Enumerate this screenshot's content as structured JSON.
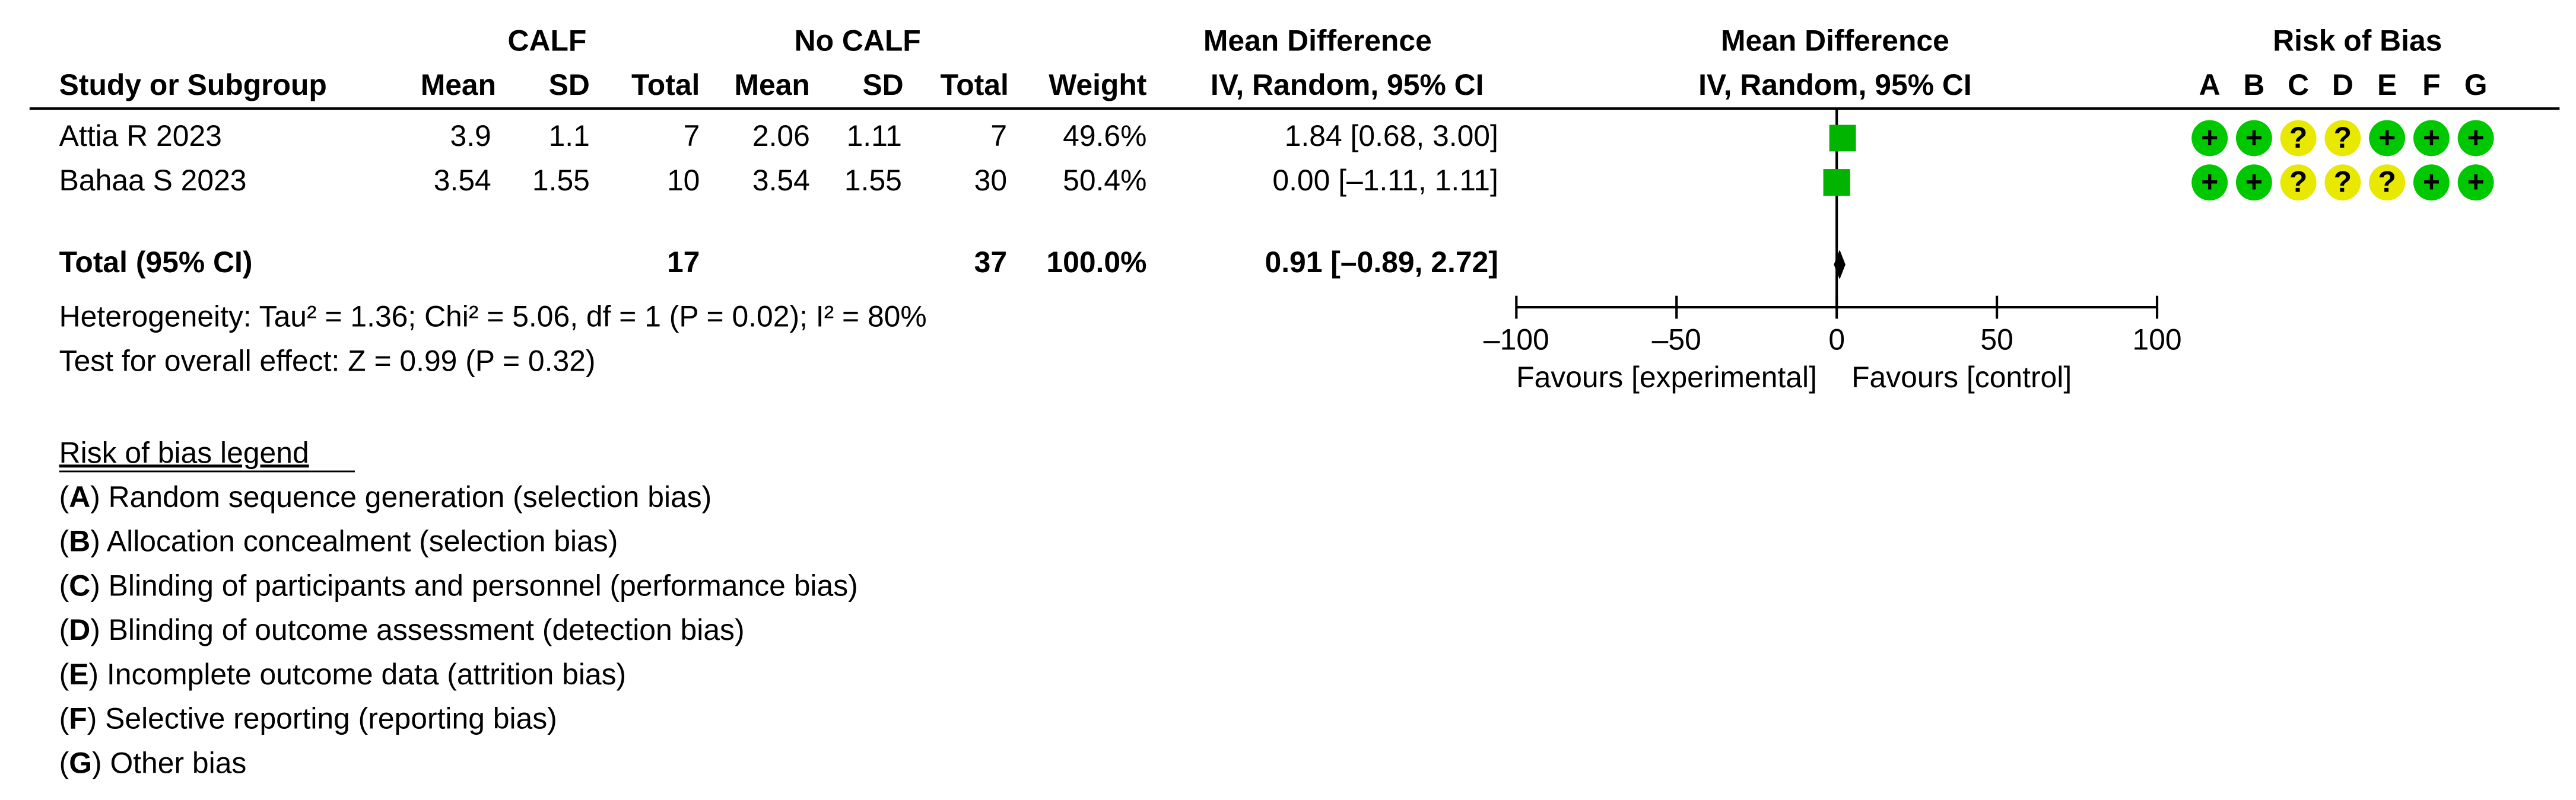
{
  "chart_data": {
    "type": "forest",
    "group_headers": {
      "experimental": "CALF",
      "control": "No CALF",
      "effect": "Mean Difference",
      "plot": "Mean Difference",
      "bias": "Risk of Bias"
    },
    "column_headers": [
      "Study or Subgroup",
      "Mean",
      "SD",
      "Total",
      "Mean",
      "SD",
      "Total",
      "Weight",
      "IV, Random, 95% CI"
    ],
    "plot_header": "IV, Random, 95% CI",
    "bias_domains": [
      "A",
      "B",
      "C",
      "D",
      "E",
      "F",
      "G"
    ],
    "studies": [
      "Attia R 2023",
      "Bahaa S 2023"
    ],
    "rows": [
      [
        3.9,
        1.1,
        7,
        2.06,
        1.11,
        7
      ],
      [
        3.54,
        1.55,
        10,
        3.54,
        1.55,
        30
      ]
    ],
    "weights": [
      49.6,
      50.4
    ],
    "weight_labels": [
      "49.6%",
      "50.4%"
    ],
    "values": [
      1.84,
      0
    ],
    "ci_low": [
      0.68,
      -1.11
    ],
    "ci_high": [
      3.0,
      1.11
    ],
    "value_labels": [
      "1.84 [0.68, 3.00]",
      "0.00 [–1.11, 1.11]"
    ],
    "bias": [
      [
        "+",
        "+",
        "?",
        "?",
        "+",
        "+",
        "+"
      ],
      [
        "+",
        "+",
        "?",
        "?",
        "?",
        "+",
        "+"
      ]
    ],
    "bias_colors": {
      "+": "#00c800",
      "?": "#e8e800"
    },
    "square_color": "#00b400",
    "total": {
      "label": "Total (95% CI)",
      "experimental_n": 17,
      "control_n": 37,
      "weight_label": "100.0%",
      "value": 0.91,
      "ci_low": -0.89,
      "ci_high": 2.72,
      "value_label": "0.91 [–0.89, 2.72]"
    },
    "heterogeneity": "Heterogeneity: Tau² = 1.36; Chi² = 5.06, df = 1 (P = 0.02); I² = 80%",
    "overall_effect": "Test for overall effect: Z = 0.99 (P = 0.32)",
    "xlim": [
      -100,
      100
    ],
    "xticks": [
      {
        "value": -100,
        "label": "–100"
      },
      {
        "value": -50,
        "label": "–50"
      },
      0,
      50,
      100
    ],
    "favours_left": "Favours [experimental]",
    "favours_right": "Favours [control]",
    "legend_title": "Risk of bias legend",
    "legend_items": [
      {
        "prefix": "(",
        "text": ") Random sequence generation (selection bias)"
      },
      {
        "prefix": "(",
        "text": ") Allocation concealment (selection bias)"
      },
      {
        "prefix": "(",
        "text": ") Blinding of participants and personnel (performance bias)"
      },
      {
        "prefix": "(",
        "text": ") Blinding of outcome assessment (detection bias)"
      },
      {
        "prefix": "(",
        "text": ") Incomplete outcome data (attrition bias)"
      },
      {
        "prefix": "(",
        "text": ") Selective reporting (reporting bias)"
      },
      {
        "prefix": "(",
        "text": ") Other bias"
      }
    ]
  }
}
